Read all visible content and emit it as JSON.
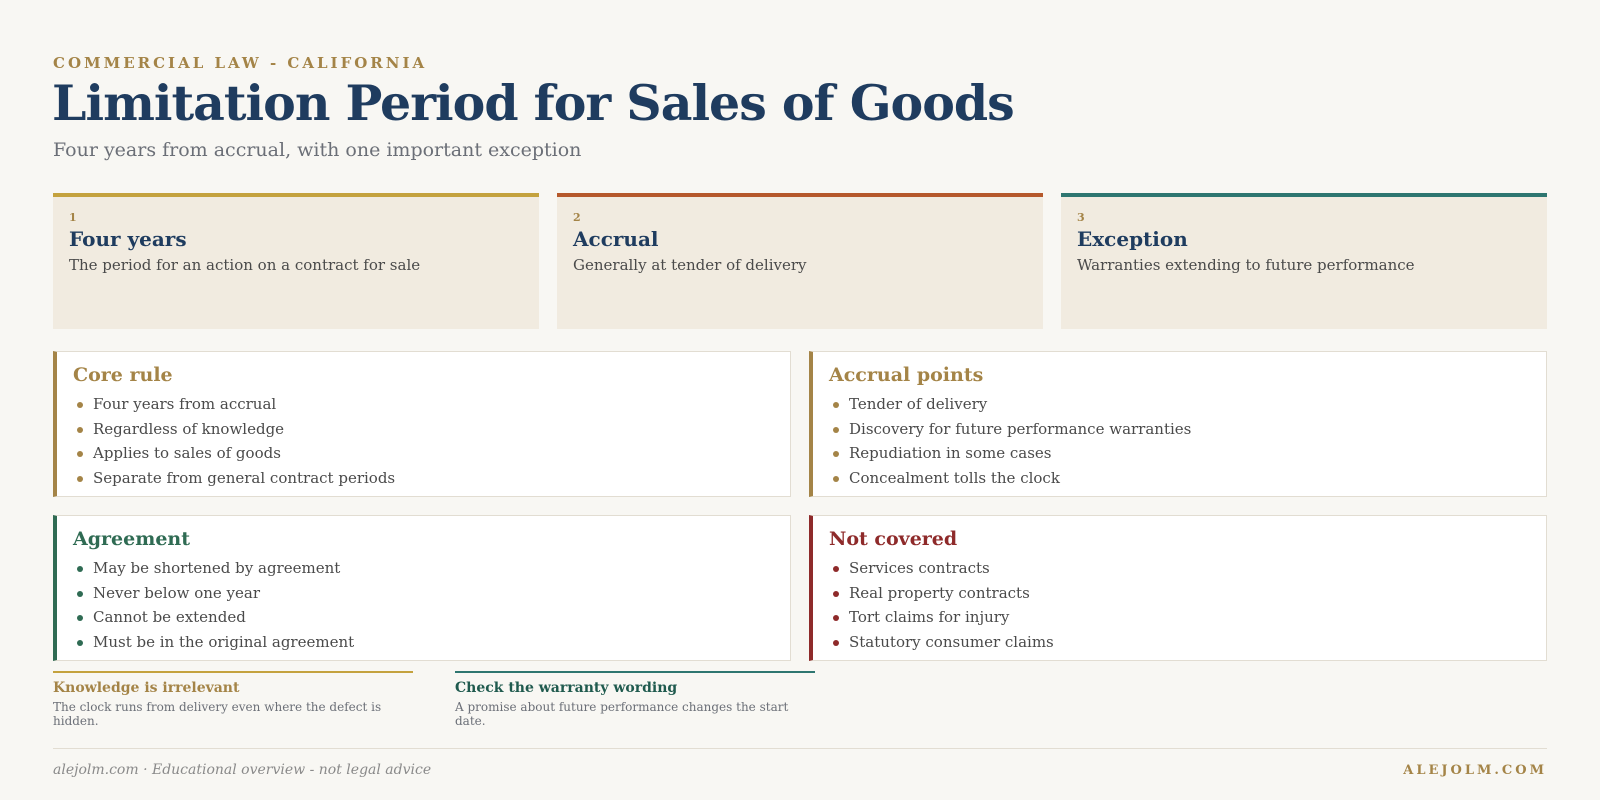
{
  "header": {
    "eyebrow": "COMMERCIAL LAW - CALIFORNIA",
    "title": "Limitation Period for Sales of Goods",
    "subtitle": "Four years from accrual, with one important exception"
  },
  "steps": [
    {
      "number": "1",
      "title": "Four years",
      "description": "The period for an action on a contract for sale",
      "accent": "#c4a23e"
    },
    {
      "number": "2",
      "title": "Accrual",
      "description": "Generally at tender of delivery",
      "accent": "#b5582b"
    },
    {
      "number": "3",
      "title": "Exception",
      "description": "Warranties extending to future performance",
      "accent": "#2e7670"
    }
  ],
  "panels": [
    {
      "title": "Core rule",
      "accent": "#a48447",
      "items": [
        "Four years from accrual",
        "Regardless of knowledge",
        "Applies to sales of goods",
        "Separate from general contract periods"
      ]
    },
    {
      "title": "Accrual points",
      "accent": "#a48447",
      "items": [
        "Tender of delivery",
        "Discovery for future performance warranties",
        "Repudiation in some cases",
        "Concealment tolls the clock"
      ]
    },
    {
      "title": "Agreement",
      "accent": "#2f6b53",
      "items": [
        "May be shortened by agreement",
        "Never below one year",
        "Cannot be extended",
        "Must be in the original agreement"
      ]
    },
    {
      "title": "Not covered",
      "accent": "#8e2a2a",
      "items": [
        "Services contracts",
        "Real property contracts",
        "Tort claims for injury",
        "Statutory consumer claims"
      ]
    }
  ],
  "notes": [
    {
      "title": "Knowledge is irrelevant",
      "text": "The clock runs from delivery even where the defect is hidden.",
      "accent": "#c4a23e",
      "title_color": "#a48447"
    },
    {
      "title": "Check the warranty wording",
      "text": "A promise about future performance changes the start date.",
      "accent": "#2e7670",
      "title_color": "#1f5a4e"
    }
  ],
  "footer": {
    "left": "alejolm.com · Educational overview - not legal advice",
    "right": "ALEJOLM.COM"
  }
}
